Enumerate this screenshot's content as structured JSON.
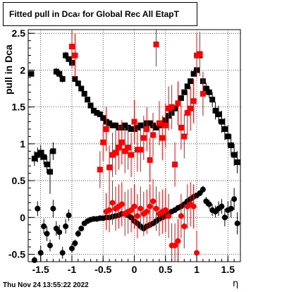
{
  "title": {
    "prefix": "Fitted pull in Dca",
    "subscript": "z",
    "suffix": " for Global Rec All EtapT"
  },
  "footer_timestamp": "Thu Nov 24 13:55:22 2022",
  "chart_data": {
    "type": "scatter",
    "title": "Fitted pull in Dca_z for Global Rec All EtapT",
    "xlabel": "η",
    "ylabel": "pull in Dca",
    "xlim": [
      -1.7,
      1.7
    ],
    "ylim": [
      -0.6,
      2.55
    ],
    "grid": true,
    "xticks": [
      -1.5,
      -1,
      -0.5,
      0,
      0.5,
      1,
      1.5
    ],
    "xtick_labels": [
      "-1.5",
      "-1",
      "-0.5",
      "0",
      "0.5",
      "1",
      "1.5"
    ],
    "yticks": [
      -0.5,
      0,
      0.5,
      1,
      1.5,
      2,
      2.5
    ],
    "ytick_labels": [
      "-0.5",
      "0",
      "0.5",
      "1",
      "1.5",
      "2",
      "2.5"
    ],
    "series": [
      {
        "marker": "square",
        "color": "#000000",
        "x": [
          -1.65,
          -1.6,
          -1.55,
          -1.5,
          -1.45,
          -1.4,
          -1.35,
          -1.3,
          -1.25,
          -1.2,
          -1.15,
          -1.1,
          -1.05,
          -1.0,
          -0.95,
          -0.9,
          -0.85,
          -0.8,
          -0.75,
          -0.7,
          -0.65,
          -0.6,
          -0.55,
          -0.5,
          -0.45,
          -0.4,
          -0.35,
          -0.3,
          -0.25,
          -0.2,
          -0.15,
          -0.1,
          -0.05,
          0.0,
          0.05,
          0.1,
          0.15,
          0.2,
          0.25,
          0.3,
          0.35,
          0.4,
          0.45,
          0.5,
          0.55,
          0.6,
          0.65,
          0.7,
          0.75,
          0.8,
          0.85,
          0.9,
          0.95,
          1.0,
          1.05,
          1.1,
          1.15,
          1.2,
          1.25,
          1.3,
          1.35,
          1.4,
          1.45,
          1.5,
          1.55,
          1.6,
          1.65
        ],
        "y": [
          1.95,
          0.8,
          0.85,
          0.88,
          0.82,
          0.72,
          0.62,
          0.9,
          1.98,
          1.95,
          1.88,
          2.2,
          2.15,
          2.1,
          1.88,
          1.82,
          1.75,
          1.68,
          1.6,
          1.52,
          1.45,
          1.42,
          1.4,
          1.35,
          1.3,
          1.28,
          1.25,
          1.25,
          1.22,
          1.22,
          1.25,
          1.22,
          1.2,
          1.2,
          1.22,
          1.25,
          1.25,
          1.28,
          1.28,
          1.25,
          1.22,
          1.25,
          1.28,
          1.32,
          1.38,
          1.42,
          1.48,
          1.55,
          1.62,
          1.7,
          1.78,
          1.85,
          1.95,
          2.0,
          2.2,
          1.85,
          1.75,
          1.7,
          1.6,
          1.45,
          1.4,
          1.3,
          1.2,
          1.1,
          0.98,
          0.85,
          0.75
        ],
        "yerr": [
          0.03,
          0.1,
          0.1,
          0.1,
          0.1,
          0.12,
          0.3,
          0.12,
          0.05,
          0.05,
          0.05,
          0.05,
          0.04,
          0.04,
          0.04,
          0.03,
          0.03,
          0.03,
          0.03,
          0.02,
          0.02,
          0.02,
          0.02,
          0.02,
          0.02,
          0.02,
          0.02,
          0.02,
          0.02,
          0.02,
          0.02,
          0.02,
          0.02,
          0.02,
          0.02,
          0.02,
          0.02,
          0.02,
          0.02,
          0.02,
          0.02,
          0.02,
          0.02,
          0.02,
          0.02,
          0.02,
          0.03,
          0.03,
          0.03,
          0.03,
          0.03,
          0.03,
          0.04,
          0.04,
          0.05,
          0.05,
          0.08,
          0.08,
          0.1,
          0.12,
          0.12,
          0.15,
          0.15,
          0.15,
          0.15,
          0.15,
          0.15
        ]
      },
      {
        "marker": "circle",
        "color": "#000000",
        "x": [
          -1.6,
          -1.55,
          -1.5,
          -1.45,
          -1.4,
          -1.35,
          -1.3,
          -1.25,
          -1.2,
          -1.15,
          -1.1,
          -1.05,
          -1.0,
          -0.95,
          -0.9,
          -0.85,
          -0.8,
          -0.75,
          -0.7,
          -0.65,
          -0.6,
          -0.55,
          -0.5,
          -0.45,
          -0.4,
          -0.35,
          -0.3,
          -0.25,
          -0.2,
          -0.15,
          -0.1,
          -0.05,
          0.0,
          0.05,
          0.1,
          0.15,
          0.2,
          0.25,
          0.3,
          0.35,
          0.4,
          0.45,
          0.5,
          0.55,
          0.6,
          0.65,
          0.7,
          0.75,
          0.8,
          0.85,
          0.9,
          0.95,
          1.0,
          1.05,
          1.1,
          1.15,
          1.2,
          1.25,
          1.3,
          1.35,
          1.4,
          1.45,
          1.5,
          1.55,
          1.6,
          1.65
        ],
        "y": [
          -0.58,
          0.12,
          -0.48,
          -0.12,
          -0.22,
          -0.38,
          0.12,
          -0.15,
          -0.2,
          -0.48,
          -0.12,
          0.03,
          -0.42,
          -0.35,
          -0.22,
          -0.15,
          -0.08,
          -0.05,
          -0.03,
          -0.02,
          -0.02,
          -0.01,
          -0.01,
          0.0,
          0.0,
          0.01,
          0.02,
          0.03,
          0.05,
          0.05,
          0.03,
          0.0,
          -0.05,
          -0.08,
          -0.12,
          -0.15,
          -0.12,
          -0.1,
          -0.08,
          -0.05,
          -0.02,
          0.0,
          0.02,
          0.05,
          0.08,
          0.1,
          0.13,
          0.15,
          0.18,
          0.22,
          0.25,
          0.28,
          0.3,
          0.33,
          0.38,
          0.22,
          0.18,
          0.1,
          0.08,
          0.12,
          0.15,
          0.0,
          0.1,
          0.12,
          0.25,
          -0.08
        ],
        "yerr": [
          0.05,
          0.1,
          0.1,
          0.1,
          0.1,
          0.08,
          0.12,
          0.1,
          0.1,
          0.08,
          0.1,
          0.08,
          0.06,
          0.05,
          0.05,
          0.04,
          0.03,
          0.03,
          0.02,
          0.02,
          0.02,
          0.02,
          0.02,
          0.02,
          0.02,
          0.02,
          0.02,
          0.02,
          0.02,
          0.02,
          0.02,
          0.02,
          0.02,
          0.02,
          0.02,
          0.02,
          0.02,
          0.02,
          0.02,
          0.02,
          0.02,
          0.02,
          0.02,
          0.02,
          0.02,
          0.02,
          0.02,
          0.02,
          0.02,
          0.03,
          0.03,
          0.03,
          0.03,
          0.04,
          0.05,
          0.06,
          0.06,
          0.08,
          0.08,
          0.1,
          0.1,
          0.12,
          0.12,
          0.12,
          0.15,
          0.15
        ]
      },
      {
        "marker": "square",
        "color": "#ff0000",
        "x": [
          -1.0,
          -0.95,
          -0.55,
          -0.5,
          -0.45,
          -0.4,
          -0.35,
          -0.3,
          -0.25,
          -0.2,
          -0.15,
          -0.1,
          -0.05,
          0.0,
          0.05,
          0.1,
          0.15,
          0.2,
          0.25,
          0.3,
          0.35,
          0.4,
          0.45,
          0.5,
          0.55,
          0.6,
          0.65,
          0.7,
          0.75,
          0.8,
          0.85,
          0.9,
          0.95,
          1.0,
          1.05,
          1.1
        ],
        "y": [
          2.32,
          2.2,
          0.65,
          1.02,
          1.2,
          0.68,
          0.85,
          0.88,
          0.95,
          1.02,
          0.9,
          0.95,
          0.85,
          1.3,
          0.92,
          0.92,
          1.08,
          1.2,
          0.78,
          1.12,
          2.35,
          1.28,
          1.08,
          1.25,
          1.48,
          1.5,
          0.72,
          1.55,
          1.22,
          1.1,
          1.42,
          1.48,
          1.58,
          2.2,
          2.22,
          1.68
        ],
        "yerr": [
          0.3,
          0.3,
          0.25,
          0.25,
          0.3,
          0.3,
          0.3,
          0.3,
          0.3,
          0.3,
          0.3,
          0.3,
          0.3,
          0.3,
          0.3,
          0.3,
          0.3,
          0.3,
          0.3,
          0.3,
          0.3,
          0.3,
          0.3,
          0.3,
          0.3,
          0.3,
          0.3,
          0.3,
          0.3,
          0.3,
          0.3,
          0.3,
          0.3,
          0.3,
          0.3,
          0.3
        ]
      },
      {
        "marker": "circle",
        "color": "#ff0000",
        "x": [
          -0.45,
          -0.4,
          -0.35,
          -0.3,
          -0.25,
          -0.2,
          -0.15,
          -0.1,
          -0.05,
          0.0,
          0.05,
          0.1,
          0.15,
          0.2,
          0.25,
          0.3,
          0.35,
          0.4,
          0.45,
          0.5,
          0.55,
          0.6,
          0.65,
          0.7,
          0.75,
          0.8,
          0.85,
          0.9,
          0.95,
          1.0
        ],
        "y": [
          0.08,
          0.1,
          0.2,
          0.12,
          0.15,
          0.18,
          0.05,
          0.08,
          0.1,
          0.15,
          0.02,
          0.12,
          0.05,
          0.08,
          0.15,
          0.22,
          0.12,
          0.05,
          0.08,
          0.1,
          0.02,
          -0.38,
          -0.38,
          -0.32,
          0.02,
          -0.12,
          0.15,
          0.18,
          0.15,
          -0.48
        ],
        "yerr": [
          0.25,
          0.3,
          0.3,
          0.3,
          0.3,
          0.3,
          0.3,
          0.3,
          0.3,
          0.3,
          0.3,
          0.3,
          0.3,
          0.3,
          0.3,
          0.3,
          0.3,
          0.3,
          0.3,
          0.3,
          0.3,
          0.3,
          0.3,
          0.3,
          0.3,
          0.3,
          0.3,
          0.3,
          0.3,
          0.3
        ]
      }
    ]
  }
}
